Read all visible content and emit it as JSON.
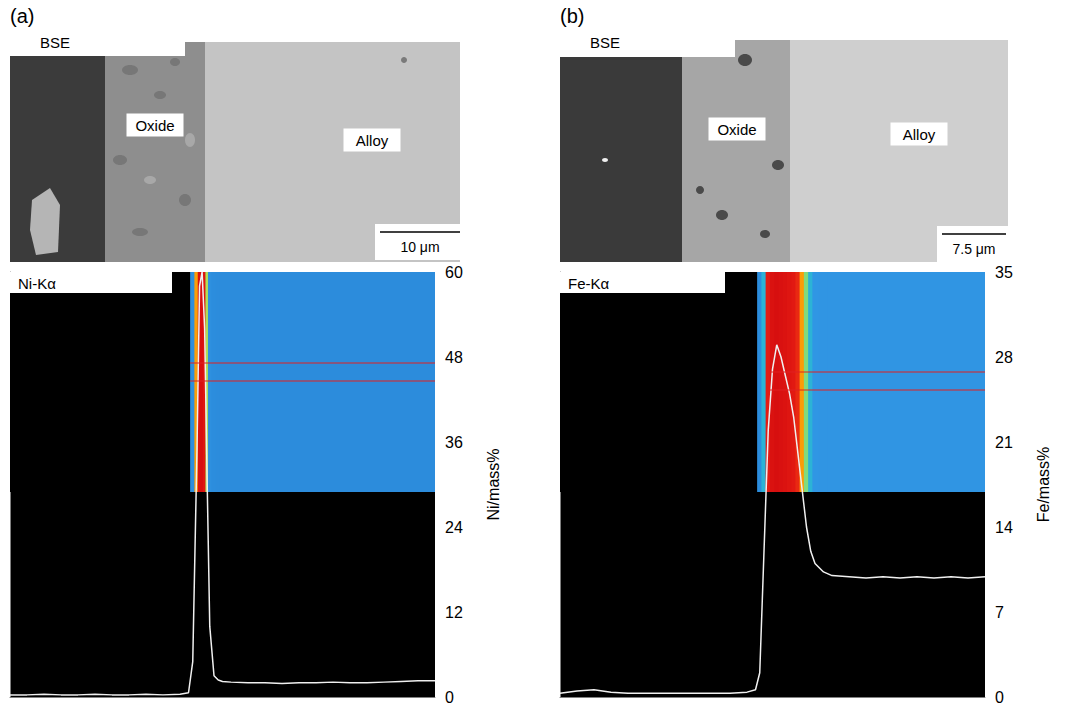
{
  "chart_data": [
    {
      "type": "line",
      "panel": "(a)",
      "image_labels": [
        "BSE",
        "Oxide",
        "Alloy"
      ],
      "scale_bar": "10 μm",
      "map_label": "Ni-Kα",
      "y_label": "Ni/mass%",
      "x": [
        0,
        2,
        4,
        6,
        8,
        10,
        12,
        14,
        16,
        18,
        20,
        21,
        21.5,
        22,
        22.3,
        22.6,
        22.9,
        23.2,
        23.5,
        24,
        24.5,
        25,
        26,
        28,
        30,
        32,
        34,
        36,
        38,
        40,
        42,
        44,
        46,
        48,
        50
      ],
      "values": [
        0.3,
        0.3,
        0.4,
        0.3,
        0.3,
        0.4,
        0.3,
        0.3,
        0.4,
        0.3,
        0.4,
        0.6,
        5,
        35,
        58,
        60,
        52,
        30,
        10,
        3,
        2.4,
        2.2,
        2.1,
        2.0,
        2.0,
        1.9,
        2.0,
        2.0,
        2.1,
        2.0,
        2.0,
        2.1,
        2.2,
        2.3,
        2.3
      ],
      "color": "#f0f0f0",
      "xlim": [
        0,
        50
      ],
      "ylim": [
        0,
        60
      ],
      "yticks": [
        0,
        12,
        24,
        36,
        48,
        60
      ],
      "grid": false,
      "tick_labels": "y"
    },
    {
      "type": "line",
      "panel": "(b)",
      "image_labels": [
        "BSE",
        "Oxide",
        "Alloy"
      ],
      "scale_bar": "7.5 μm",
      "map_label": "Fe-Kα",
      "y_label": "Fe/mass%",
      "x": [
        0,
        2,
        4,
        6,
        8,
        10,
        12,
        14,
        16,
        18,
        20,
        22,
        23,
        23.5,
        24,
        24.5,
        25,
        25.5,
        26,
        26.5,
        27,
        27.5,
        28,
        28.5,
        29,
        29.5,
        30,
        31,
        32,
        34,
        36,
        38,
        40,
        42,
        44,
        46,
        48,
        50
      ],
      "values": [
        0.3,
        0.5,
        0.6,
        0.4,
        0.3,
        0.3,
        0.3,
        0.3,
        0.3,
        0.3,
        0.3,
        0.4,
        0.6,
        2,
        12,
        22,
        27,
        29,
        28,
        26.5,
        25,
        23,
        20,
        17,
        14,
        12,
        11,
        10.3,
        10,
        9.9,
        9.8,
        9.9,
        9.8,
        9.9,
        9.8,
        9.9,
        9.8,
        9.9
      ],
      "color": "#f0f0f0",
      "xlim": [
        0,
        50
      ],
      "ylim": [
        0,
        35
      ],
      "yticks": [
        0,
        7,
        14,
        21,
        28,
        35
      ],
      "grid": false,
      "tick_labels": "y"
    }
  ]
}
